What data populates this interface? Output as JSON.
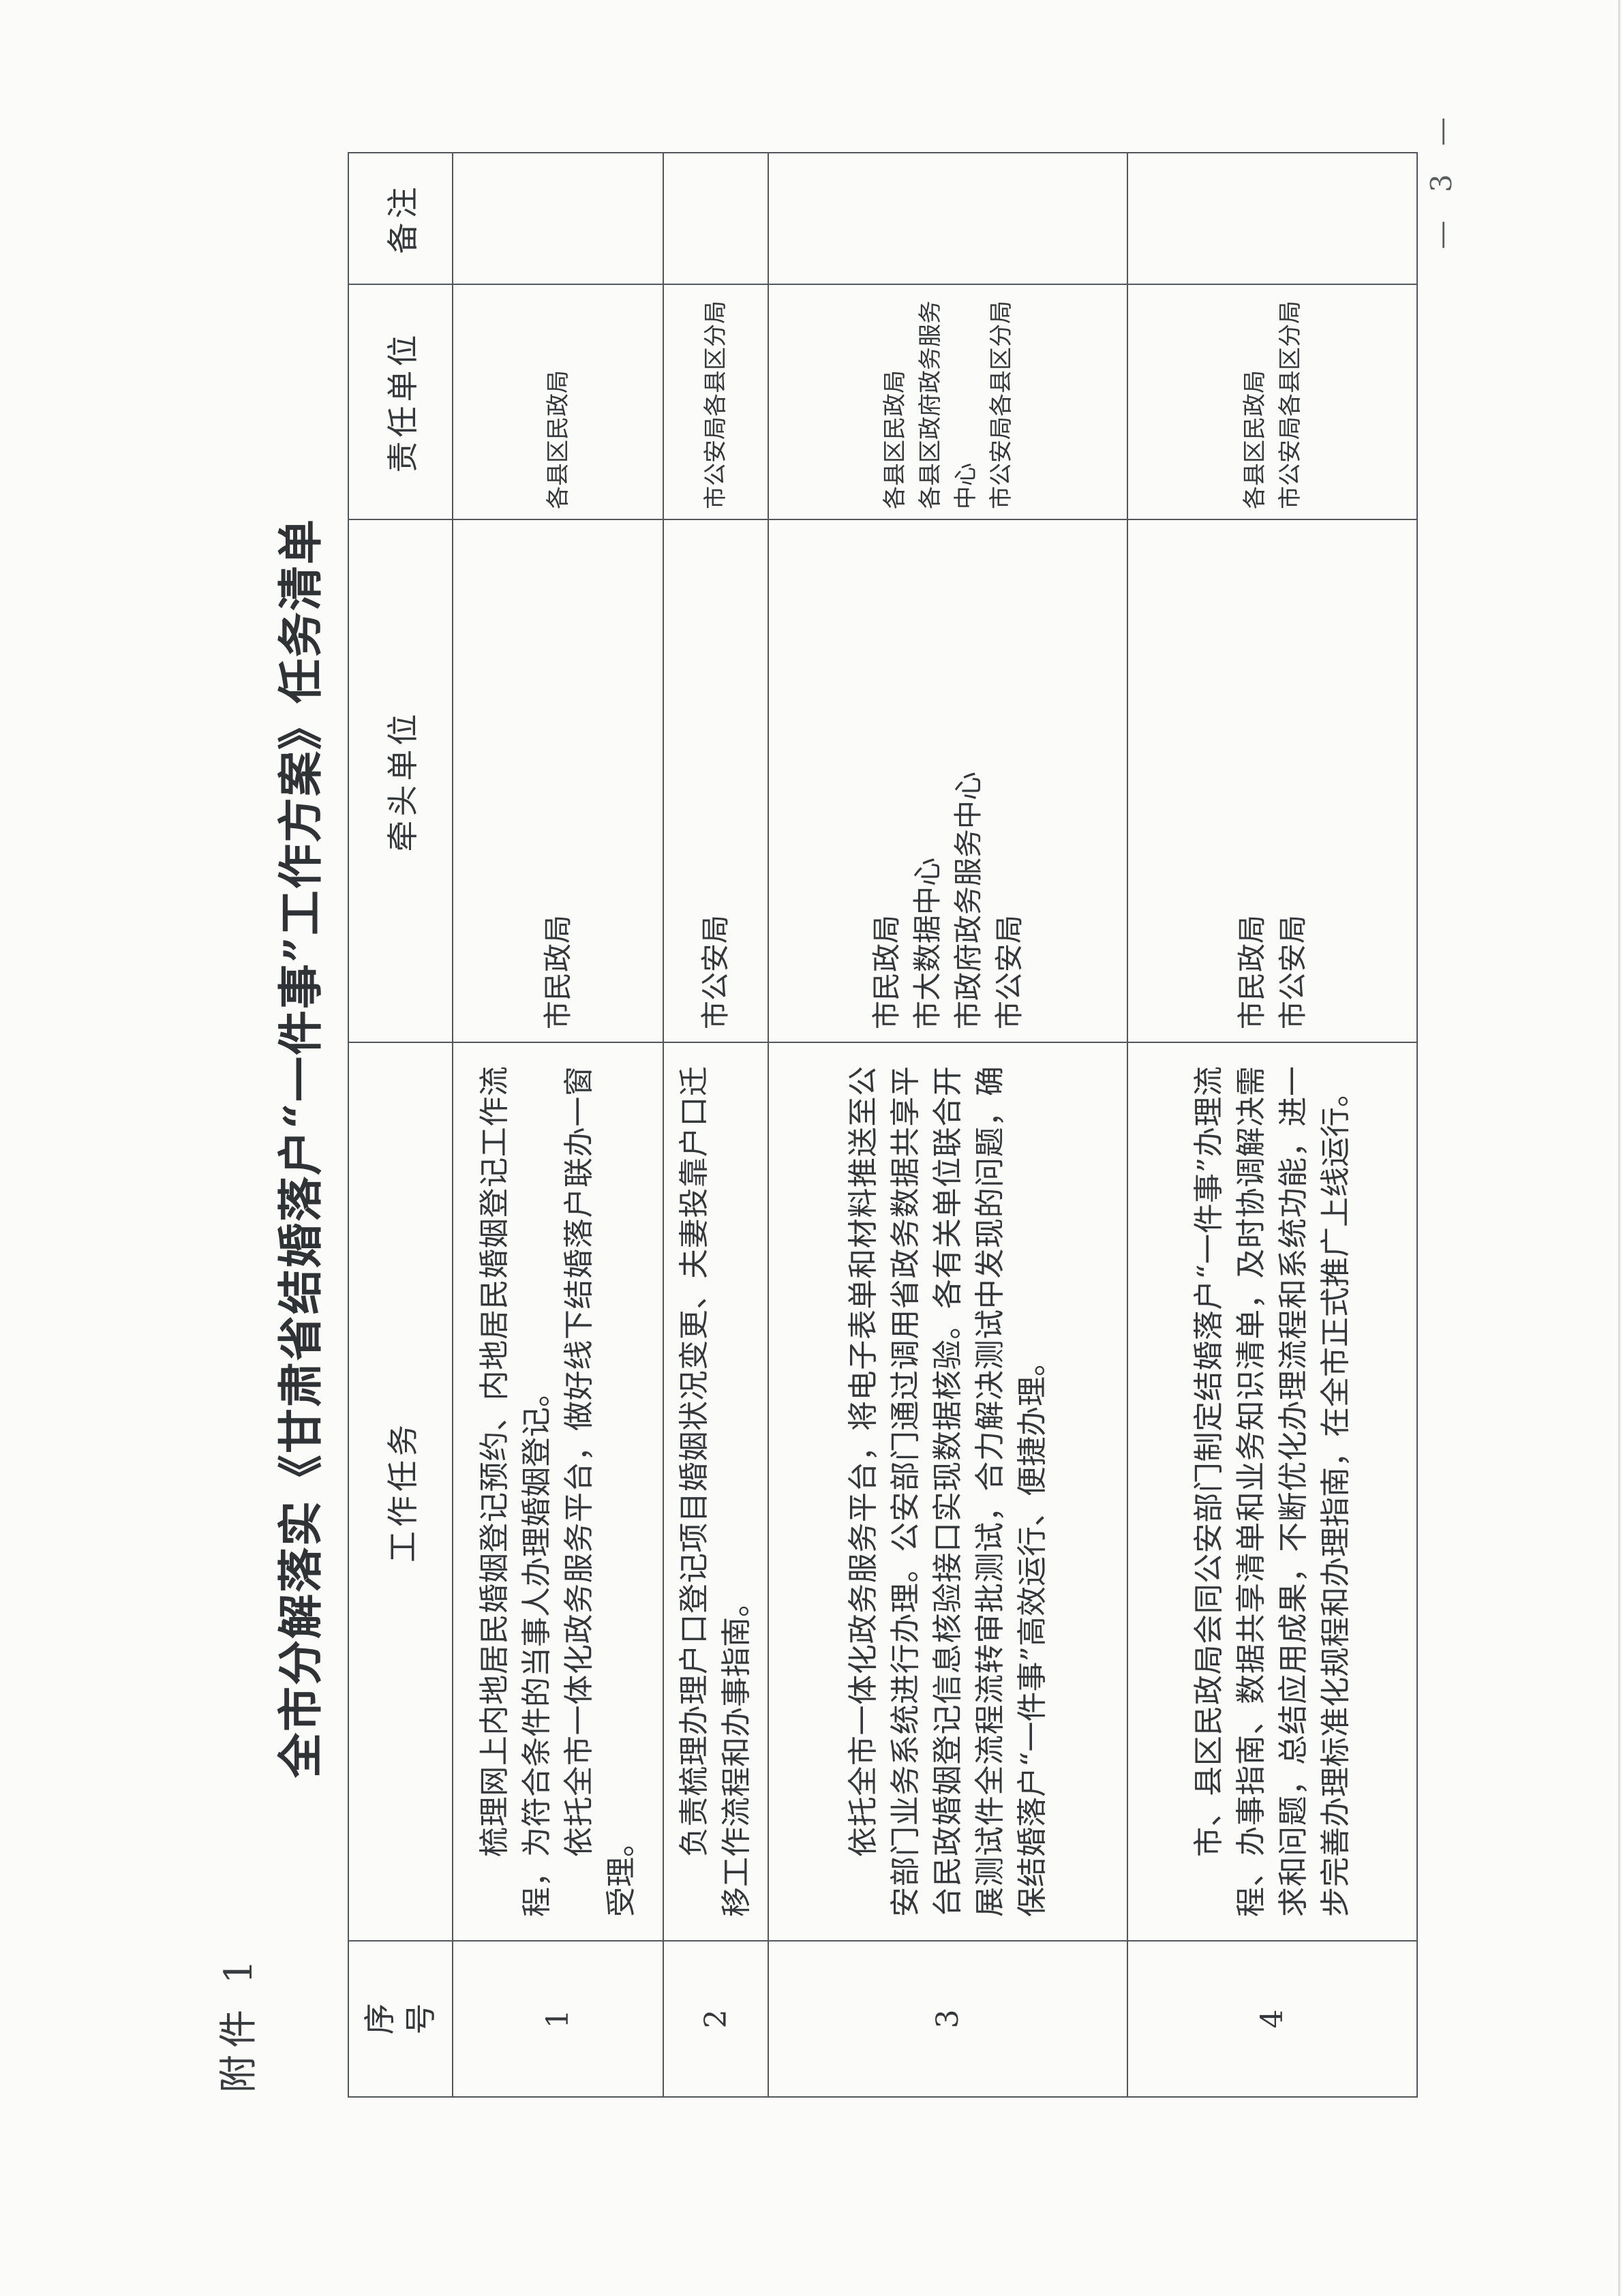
{
  "page": {
    "attachment_label": "附件 1",
    "title": "全市分解落实《甘肃省结婚落户“一件事”工作方案》任务清单",
    "page_number": "— 3 —"
  },
  "table": {
    "headers": {
      "index": "序号",
      "task": "工作任务",
      "lead": "牵头单位",
      "responsible": "责任单位",
      "remark": "备注"
    },
    "rows": [
      {
        "index": "1",
        "task_paragraphs": [
          "梳理网上内地居民婚姻登记预约、内地居民婚姻登记工作流程，为符合条件的当事人办理婚姻登记。",
          "依托全市一体化政务服务平台，做好线下结婚落户联办一窗受理。"
        ],
        "lead": [
          "市民政局"
        ],
        "responsible": [
          "各县区民政局"
        ],
        "remark": ""
      },
      {
        "index": "2",
        "task_paragraphs": [
          "负责梳理办理户口登记项目婚姻状况变更、夫妻投靠户口迁移工作流程和办事指南。"
        ],
        "lead": [
          "市公安局"
        ],
        "responsible": [
          "市公安局各县区分局"
        ],
        "remark": ""
      },
      {
        "index": "3",
        "task_paragraphs": [
          "依托全市一体化政务服务平台，将电子表单和材料推送至公安部门业务系统进行办理。公安部门通过调用省政务数据共享平台民政婚姻登记信息核验接口实现数据核验。各有关单位联合开展测试件全流程流转审批测试，合力解决测试中发现的问题，确保结婚落户“一件事”高效运行、便捷办理。"
        ],
        "lead": [
          "市民政局",
          "市大数据中心",
          "市政府政务服务中心",
          "市公安局"
        ],
        "responsible": [
          "各县区民政局",
          "各县区政府政务服务中心",
          "市公安局各县区分局"
        ],
        "remark": ""
      },
      {
        "index": "4",
        "task_paragraphs": [
          "市、县区民政局会同公安部门制定结婚落户“一件事”办理流程、办事指南、数据共享清单和业务知识清单，及时协调解决需求和问题，总结应用成果，不断优化办理流程和系统功能，进一步完善办理标准化规程和办理指南，在全市正式推广上线运行。"
        ],
        "lead": [
          "市民政局",
          "市公安局"
        ],
        "responsible": [
          "各县区民政局",
          "市公安局各县区分局"
        ],
        "remark": ""
      }
    ]
  }
}
